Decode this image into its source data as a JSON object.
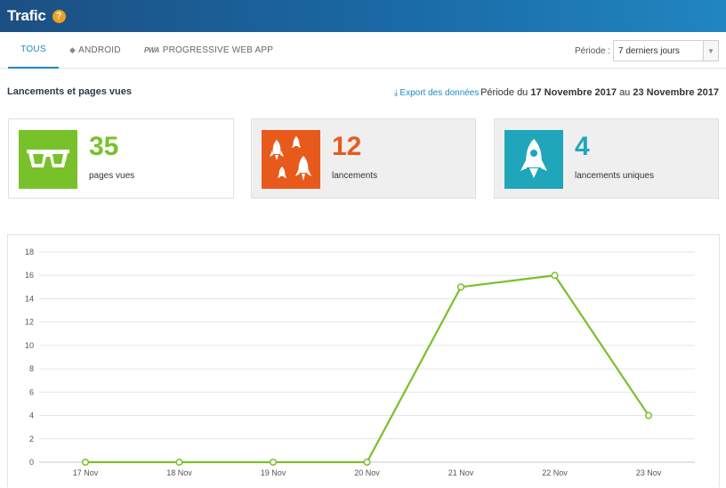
{
  "header": {
    "title": "Trafic",
    "help_icon": "question-icon"
  },
  "tabs": [
    {
      "label": "TOUS",
      "active": true
    },
    {
      "label": "ANDROID",
      "icon": "android-icon",
      "active": false
    },
    {
      "label": "PROGRESSIVE WEB APP",
      "icon": "pwa-icon",
      "icon_text": "PWA",
      "active": false
    }
  ],
  "period_select": {
    "label": "Période :",
    "selected": "7 derniers jours"
  },
  "section": {
    "title": "Lancements et pages vues",
    "export_label": "Export des données",
    "period_prefix": "Période du",
    "period_start": "17 Novembre 2017",
    "period_mid": "au",
    "period_end": "23 Novembre 2017"
  },
  "cards": [
    {
      "value": "35",
      "label": "pages vues",
      "color": "#79c12a",
      "icon": "glasses-icon"
    },
    {
      "value": "12",
      "label": "lancements",
      "color": "#e85a1b",
      "icon": "rockets-icon"
    },
    {
      "value": "4",
      "label": "lancements uniques",
      "color": "#1fa6bb",
      "icon": "rocket-icon"
    }
  ],
  "chart_data": {
    "type": "line",
    "categories": [
      "17 Nov",
      "18 Nov",
      "19 Nov",
      "20 Nov",
      "21 Nov",
      "22 Nov",
      "23 Nov"
    ],
    "values": [
      0,
      0,
      0,
      0,
      15,
      16,
      4
    ],
    "ylim": [
      0,
      18
    ],
    "yticks": [
      0,
      2,
      4,
      6,
      8,
      10,
      12,
      14,
      16,
      18
    ],
    "grid": true,
    "color": "#79c12a",
    "title": "",
    "xlabel": "",
    "ylabel": ""
  }
}
